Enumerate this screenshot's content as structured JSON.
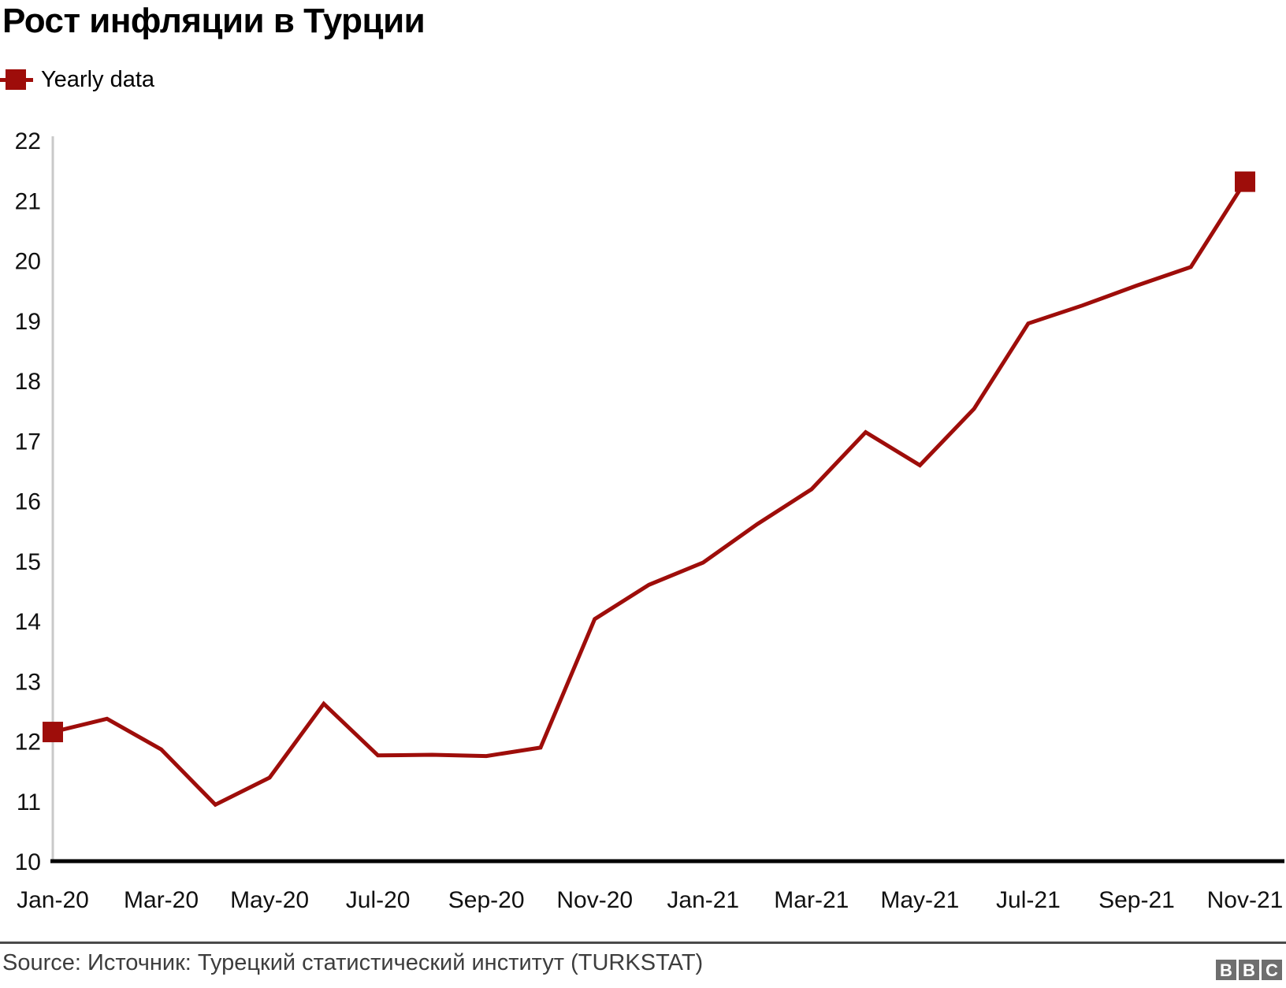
{
  "header": {
    "title": "Рост инфляции в Турции"
  },
  "legend": {
    "label": "Yearly data"
  },
  "chart_data": {
    "type": "line",
    "title": "Рост инфляции в Турции",
    "categories": [
      "Jan-20",
      "Feb-20",
      "Mar-20",
      "Apr-20",
      "May-20",
      "Jun-20",
      "Jul-20",
      "Aug-20",
      "Sep-20",
      "Oct-20",
      "Nov-20",
      "Dec-20",
      "Jan-21",
      "Feb-21",
      "Mar-21",
      "Apr-21",
      "May-21",
      "Jun-21",
      "Jul-21",
      "Aug-21",
      "Sep-21",
      "Oct-21",
      "Nov-21"
    ],
    "series": [
      {
        "name": "Yearly data",
        "color": "#9e0d0a",
        "values": [
          12.15,
          12.37,
          11.86,
          10.94,
          11.39,
          12.62,
          11.76,
          11.77,
          11.75,
          11.89,
          14.03,
          14.6,
          14.97,
          15.61,
          16.19,
          17.14,
          16.59,
          17.53,
          18.95,
          19.25,
          19.58,
          19.89,
          21.31
        ]
      }
    ],
    "xlabel": "",
    "ylabel": "",
    "ylim": [
      10,
      22
    ],
    "y_ticks": [
      10,
      11,
      12,
      13,
      14,
      15,
      16,
      17,
      18,
      19,
      20,
      21,
      22
    ],
    "x_tick_every": 2,
    "grid": false,
    "legend_position": "top-left",
    "endpoint_marker": "square",
    "axis_colors": {
      "y_axis_line": "#c9c9c9",
      "x_axis_line": "#000000",
      "tick_label": "#111111"
    }
  },
  "footer": {
    "source": "Source: Источник: Турецкий статистический институт (TURKSTAT)",
    "logo_letters": [
      "B",
      "B",
      "C"
    ]
  }
}
